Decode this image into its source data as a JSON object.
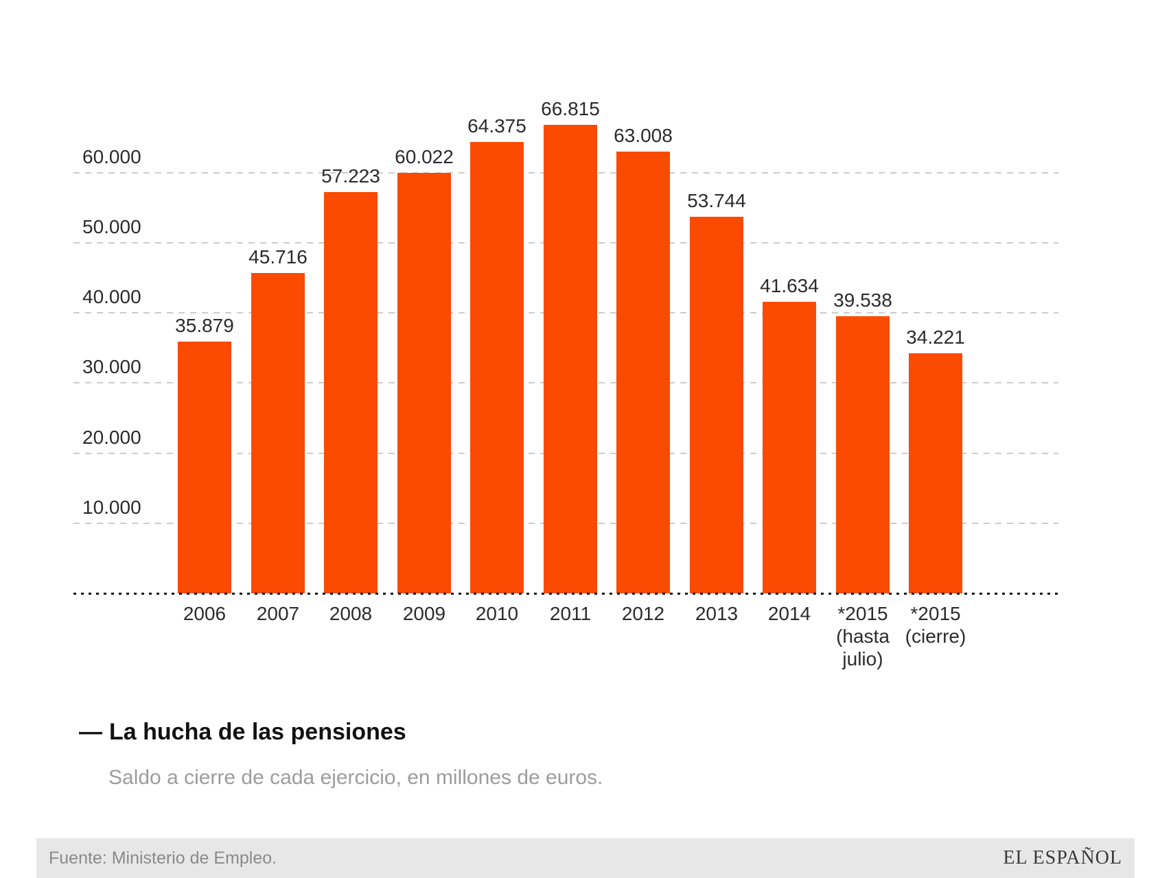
{
  "chart_data": {
    "type": "bar",
    "title": "La hucha de las pensiones",
    "title_prefix": "—",
    "subtitle": "Saldo a cierre de cada ejercicio, en millones de euros.",
    "categories": [
      "2006",
      "2007",
      "2008",
      "2009",
      "2010",
      "2011",
      "2012",
      "2013",
      "2014",
      "*2015\n(hasta\njulio)",
      "*2015\n(cierre)"
    ],
    "values": [
      35879,
      45716,
      57223,
      60022,
      64375,
      66815,
      63008,
      53744,
      41634,
      39538,
      34221
    ],
    "value_labels": [
      "35.879",
      "45.716",
      "57.223",
      "60.022",
      "64.375",
      "66.815",
      "63.008",
      "53.744",
      "41.634",
      "39.538",
      "34.221"
    ],
    "xlabel": "",
    "ylabel": "",
    "ylim": [
      0,
      70000
    ],
    "y_ticks": [
      {
        "value": 10000,
        "label": "10.000"
      },
      {
        "value": 20000,
        "label": "20.000"
      },
      {
        "value": 30000,
        "label": "30.000"
      },
      {
        "value": 40000,
        "label": "40.000"
      },
      {
        "value": 50000,
        "label": "50.000"
      },
      {
        "value": 60000,
        "label": "60.000"
      }
    ],
    "grid": "dashed horizontal",
    "legend": "none",
    "colors": {
      "bar": "#fb4a01",
      "grid": "#cccccc",
      "baseline": "#111111",
      "label_text": "#2b2b2b",
      "subtitle_text": "#9c9c9c",
      "footer_bg": "#e7e7e7",
      "footer_text": "#8a8a8a",
      "brand_text": "#3a3a3a"
    }
  },
  "footer": {
    "source": "Fuente: Ministerio de Empleo.",
    "brand": "EL ESPAÑOL"
  }
}
